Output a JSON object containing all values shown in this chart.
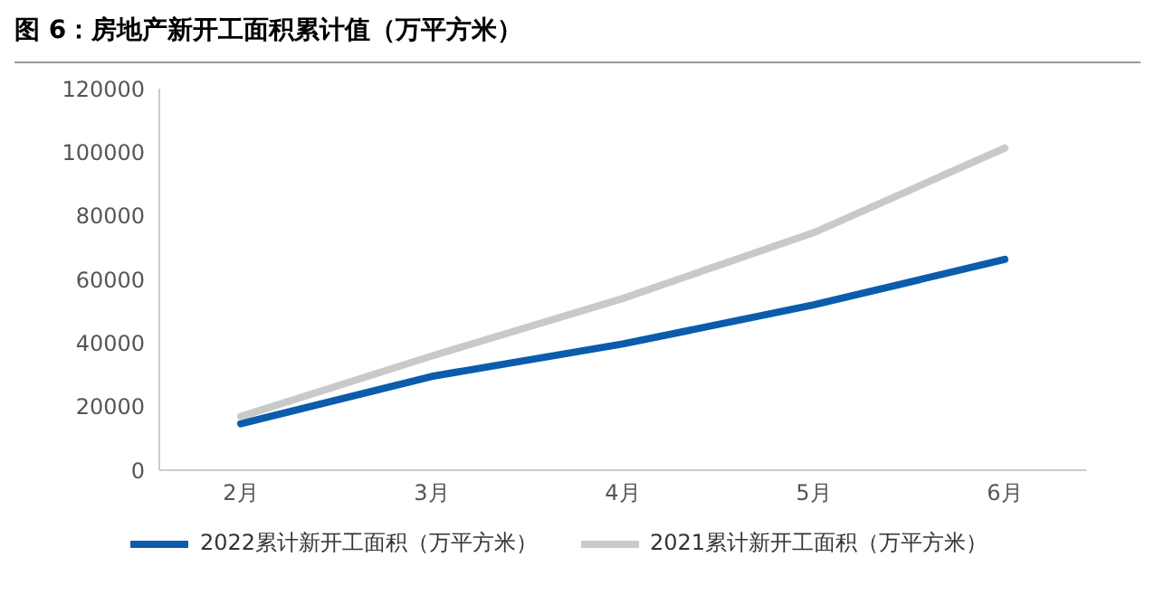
{
  "chart_data": {
    "type": "line",
    "title": "图 6：房地产新开工面积累计值（万平方米）",
    "categories": [
      "2月",
      "3月",
      "4月",
      "5月",
      "6月"
    ],
    "series": [
      {
        "name": "2022累计新开工面积（万平方米）",
        "color": "#0b5cad",
        "values": [
          14600,
          29500,
          39700,
          52000,
          66300
        ]
      },
      {
        "name": "2021累计新开工面积（万平方米）",
        "color": "#c9c9c9",
        "values": [
          16900,
          35900,
          54000,
          74700,
          101300
        ]
      }
    ],
    "ylim": [
      0,
      120000
    ],
    "yticks": [
      0,
      20000,
      40000,
      60000,
      80000,
      100000,
      120000
    ],
    "grid": false,
    "legend": "bottom",
    "marker": "none",
    "line_style": "solid"
  }
}
